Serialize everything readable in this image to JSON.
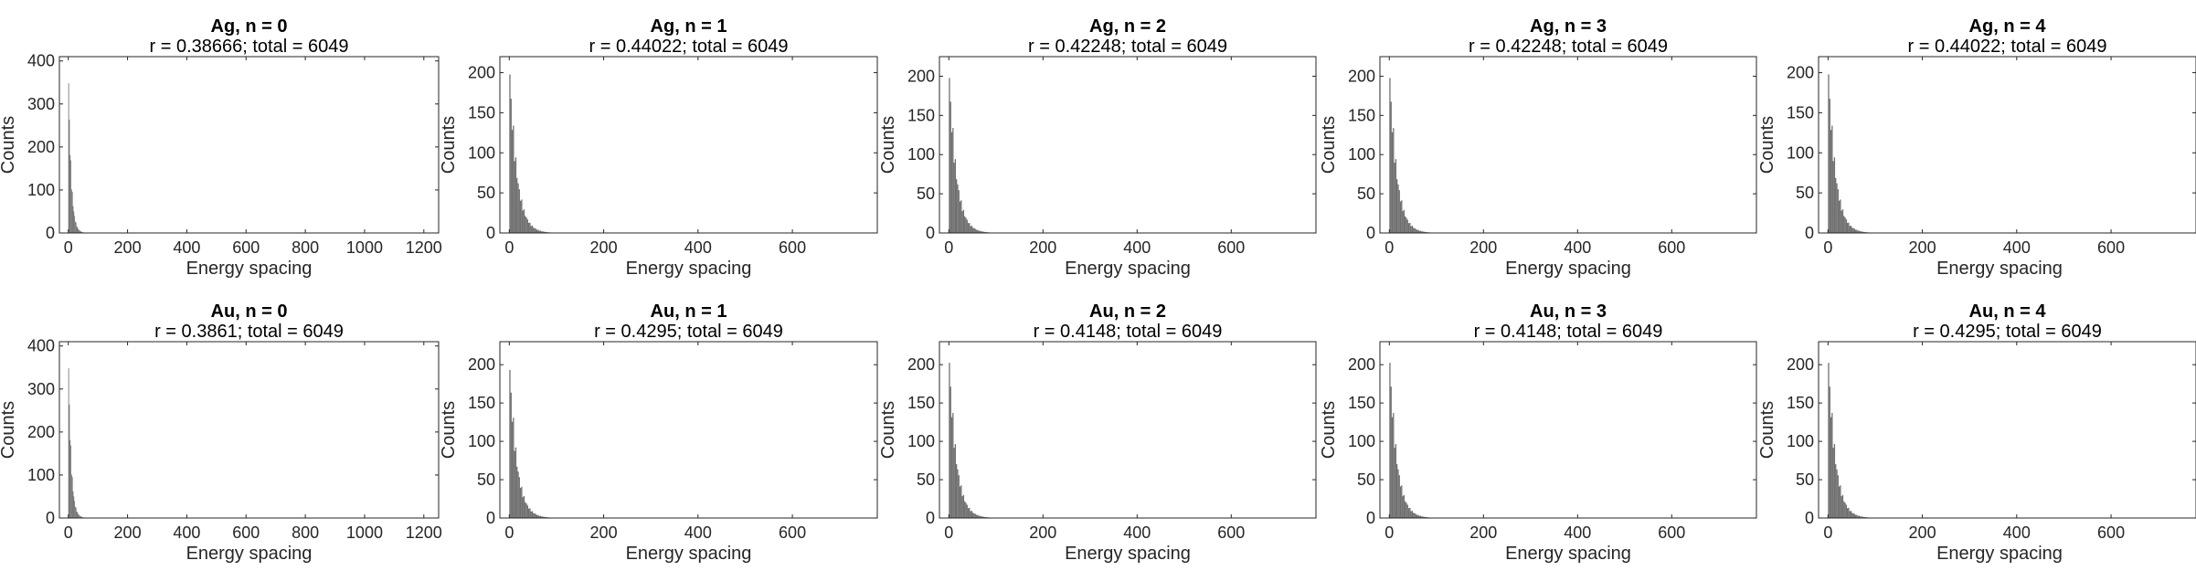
{
  "colors": {
    "bars": "#6e6e6e",
    "axes": "#262626",
    "background": "#ffffff"
  },
  "chart_data": [
    {
      "type": "bar",
      "title": "Ag, n = 0",
      "subtitle": "r = 0.38666; total = 6049",
      "xlabel": "Energy spacing",
      "ylabel": "Counts",
      "xlim": [
        -30,
        1250
      ],
      "ylim": [
        0,
        410
      ],
      "xticks": [
        0,
        200,
        400,
        600,
        800,
        1000,
        1200
      ],
      "yticks": [
        0,
        100,
        200,
        300,
        400
      ],
      "peak": 400,
      "decay": 9,
      "bin_width": 2.5,
      "grid": false
    },
    {
      "type": "bar",
      "title": "Ag, n = 1",
      "subtitle": "r = 0.44022; total = 6049",
      "xlabel": "Energy spacing",
      "ylabel": "Counts",
      "xlim": [
        -20,
        780
      ],
      "ylim": [
        0,
        220
      ],
      "xticks": [
        0,
        200,
        400,
        600
      ],
      "yticks": [
        0,
        50,
        100,
        150,
        200
      ],
      "peak": 215,
      "decay": 15,
      "bin_width": 2.5,
      "grid": false
    },
    {
      "type": "bar",
      "title": "Ag, n = 2",
      "subtitle": "r = 0.42248; total = 6049",
      "xlabel": "Energy spacing",
      "ylabel": "Counts",
      "xlim": [
        -20,
        780
      ],
      "ylim": [
        0,
        225
      ],
      "xticks": [
        0,
        200,
        400,
        600
      ],
      "yticks": [
        0,
        50,
        100,
        150,
        200
      ],
      "peak": 215,
      "decay": 15,
      "bin_width": 2.5,
      "grid": false
    },
    {
      "type": "bar",
      "title": "Ag, n = 3",
      "subtitle": "r = 0.42248; total = 6049",
      "xlabel": "Energy spacing",
      "ylabel": "Counts",
      "xlim": [
        -20,
        780
      ],
      "ylim": [
        0,
        225
      ],
      "xticks": [
        0,
        200,
        400,
        600
      ],
      "yticks": [
        0,
        50,
        100,
        150,
        200
      ],
      "peak": 215,
      "decay": 15,
      "bin_width": 2.5,
      "grid": false
    },
    {
      "type": "bar",
      "title": "Ag, n = 4",
      "subtitle": "r = 0.44022; total = 6049",
      "xlabel": "Energy spacing",
      "ylabel": "Counts",
      "xlim": [
        -20,
        780
      ],
      "ylim": [
        0,
        220
      ],
      "xticks": [
        0,
        200,
        400,
        600
      ],
      "yticks": [
        0,
        50,
        100,
        150,
        200
      ],
      "peak": 215,
      "decay": 15,
      "bin_width": 2.5,
      "grid": false
    },
    {
      "type": "bar",
      "title": "Au, n = 0",
      "subtitle": "r = 0.3861; total = 6049",
      "xlabel": "Energy spacing",
      "ylabel": "Counts",
      "xlim": [
        -30,
        1250
      ],
      "ylim": [
        0,
        410
      ],
      "xticks": [
        0,
        200,
        400,
        600,
        800,
        1000,
        1200
      ],
      "yticks": [
        0,
        100,
        200,
        300,
        400
      ],
      "peak": 400,
      "decay": 9,
      "bin_width": 2.5,
      "grid": false
    },
    {
      "type": "bar",
      "title": "Au, n = 1",
      "subtitle": "r = 0.4295; total = 6049",
      "xlabel": "Energy spacing",
      "ylabel": "Counts",
      "xlim": [
        -20,
        780
      ],
      "ylim": [
        0,
        230
      ],
      "xticks": [
        0,
        200,
        400,
        600
      ],
      "yticks": [
        0,
        50,
        100,
        150,
        200
      ],
      "peak": 210,
      "decay": 15,
      "bin_width": 2.5,
      "grid": false
    },
    {
      "type": "bar",
      "title": "Au, n = 2",
      "subtitle": "r = 0.4148; total = 6049",
      "xlabel": "Energy spacing",
      "ylabel": "Counts",
      "xlim": [
        -20,
        780
      ],
      "ylim": [
        0,
        230
      ],
      "xticks": [
        0,
        200,
        400,
        600
      ],
      "yticks": [
        0,
        50,
        100,
        150,
        200
      ],
      "peak": 220,
      "decay": 15,
      "bin_width": 2.5,
      "grid": false
    },
    {
      "type": "bar",
      "title": "Au, n = 3",
      "subtitle": "r = 0.4148; total = 6049",
      "xlabel": "Energy spacing",
      "ylabel": "Counts",
      "xlim": [
        -20,
        780
      ],
      "ylim": [
        0,
        230
      ],
      "xticks": [
        0,
        200,
        400,
        600
      ],
      "yticks": [
        0,
        50,
        100,
        150,
        200
      ],
      "peak": 220,
      "decay": 15,
      "bin_width": 2.5,
      "grid": false
    },
    {
      "type": "bar",
      "title": "Au, n = 4",
      "subtitle": "r = 0.4295; total = 6049",
      "xlabel": "Energy spacing",
      "ylabel": "Counts",
      "xlim": [
        -20,
        780
      ],
      "ylim": [
        0,
        230
      ],
      "xticks": [
        0,
        200,
        400,
        600
      ],
      "yticks": [
        0,
        50,
        100,
        150,
        200
      ],
      "peak": 220,
      "decay": 15,
      "bin_width": 2.5,
      "grid": false
    }
  ]
}
